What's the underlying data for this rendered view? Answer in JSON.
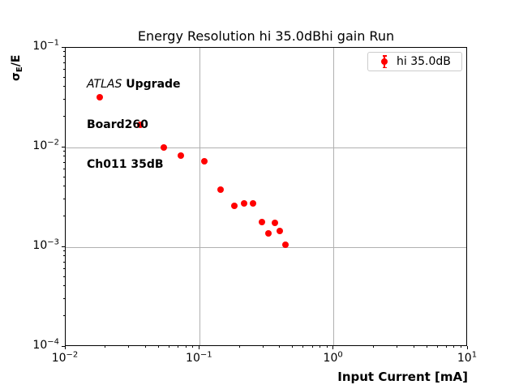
{
  "title": "Energy Resolution hi 35.0dBhi gain Run",
  "annotation": {
    "line1_italic": "ATLAS",
    "line1_bold": " Upgrade",
    "line2": "Board260",
    "line3": "Ch011 35dB"
  },
  "legend": {
    "label": "hi 35.0dB"
  },
  "ylabel_parts": {
    "main": "σ",
    "sub": "E",
    "rest": "/E"
  },
  "colors": {
    "marker": "#ff0000",
    "grid": "#b0b0b0",
    "axis": "#000000",
    "legend_border": "#cccccc"
  },
  "chart_data": {
    "type": "scatter",
    "title": "Energy Resolution hi 35.0dBhi gain Run",
    "xlabel": "Input Current [mA]",
    "ylabel": "sigma_E/E",
    "xscale": "log",
    "yscale": "log",
    "xlim": [
      0.01,
      10
    ],
    "ylim": [
      0.0001,
      0.1
    ],
    "grid": true,
    "legend_position": "upper right",
    "x_tick_exponents": [
      -2,
      -1,
      0,
      1
    ],
    "y_tick_exponents": [
      -1,
      -2,
      -3,
      -4
    ],
    "x_gridline_values": [
      0.1,
      1
    ],
    "y_gridline_values": [
      0.01,
      0.001
    ],
    "series": [
      {
        "name": "hi 35.0dB",
        "color": "#ff0000",
        "marker": "circle",
        "x": [
          0.018,
          0.036,
          0.054,
          0.072,
          0.108,
          0.142,
          0.18,
          0.214,
          0.249,
          0.29,
          0.325,
          0.362,
          0.394,
          0.434
        ],
        "y": [
          0.0318,
          0.0168,
          0.01,
          0.0083,
          0.0073,
          0.0038,
          0.0026,
          0.00273,
          0.00274,
          0.0018,
          0.00137,
          0.00175,
          0.00146,
          0.00106
        ]
      }
    ]
  }
}
